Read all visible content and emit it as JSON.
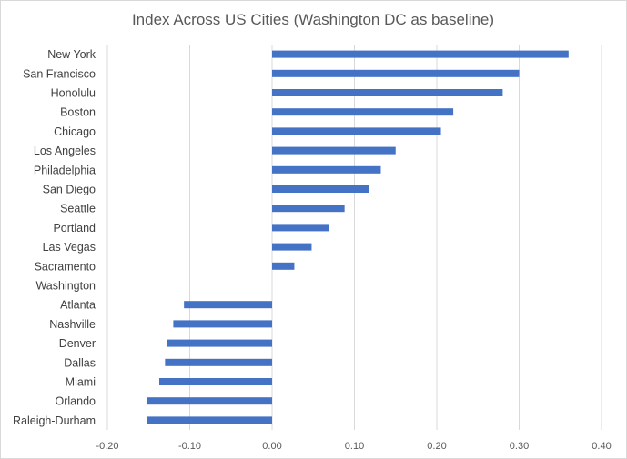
{
  "chart_data": {
    "type": "bar",
    "orientation": "horizontal",
    "title": "Index Across US Cities (Washington DC as baseline)",
    "categories": [
      "New York",
      "San Francisco",
      "Honolulu",
      "Boston",
      "Chicago",
      "Los Angeles",
      "Philadelphia",
      "San Diego",
      "Seattle",
      "Portland",
      "Las Vegas",
      "Sacramento",
      "Washington",
      "Atlanta",
      "Nashville",
      "Denver",
      "Dallas",
      "Miami",
      "Orlando",
      "Raleigh-Durham"
    ],
    "values": [
      0.36,
      0.3,
      0.28,
      0.22,
      0.205,
      0.15,
      0.132,
      0.118,
      0.088,
      0.069,
      0.048,
      0.027,
      0.0,
      -0.107,
      -0.12,
      -0.128,
      -0.13,
      -0.137,
      -0.152,
      -0.152
    ],
    "xlim": [
      -0.2,
      0.4
    ],
    "xticks": [
      -0.2,
      -0.1,
      0.0,
      0.1,
      0.2,
      0.3,
      0.4
    ],
    "xtick_labels": [
      "-0.20",
      "-0.10",
      "0.00",
      "0.10",
      "0.20",
      "0.30",
      "0.40"
    ],
    "grid": true,
    "bar_color": "#4472c4",
    "grid_color": "#d9d9d9"
  }
}
